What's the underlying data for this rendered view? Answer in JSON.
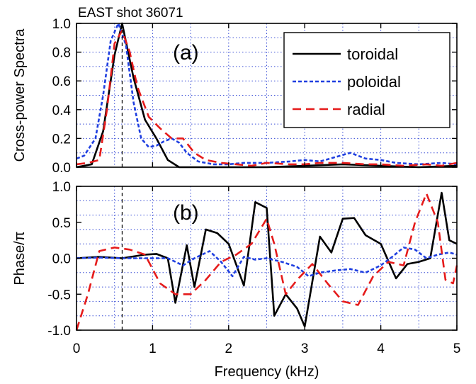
{
  "chart_data": [
    {
      "type": "line",
      "title": "EAST shot 36071",
      "panel_label": "(a)",
      "ylabel": "Cross-power Spectra",
      "xlim": [
        0,
        5
      ],
      "ylim": [
        0,
        1.0
      ],
      "x_ticks": [
        0,
        1,
        2,
        3,
        4,
        5
      ],
      "y_ticks": [
        "0.0",
        "0.2",
        "0.4",
        "0.6",
        "0.8",
        "1.0"
      ],
      "grid": true,
      "legend_position": "top-right",
      "series": [
        {
          "name": "toroidal",
          "color": "#000000",
          "style": "solid",
          "x": [
            0,
            0.2,
            0.35,
            0.5,
            0.6,
            0.75,
            0.9,
            1.05,
            1.2,
            1.35,
            1.5,
            2.0,
            2.5,
            3.0,
            3.5,
            4.0,
            4.5,
            5.0
          ],
          "y": [
            0.0,
            0.02,
            0.25,
            0.78,
            1.0,
            0.62,
            0.33,
            0.2,
            0.05,
            0.0,
            0.0,
            0.0,
            0.0,
            0.01,
            0.02,
            0.01,
            0.0,
            0.01
          ]
        },
        {
          "name": "poloidal",
          "color": "#1f3fe0",
          "style": "dotted",
          "x": [
            0,
            0.1,
            0.25,
            0.35,
            0.45,
            0.55,
            0.65,
            0.75,
            0.85,
            0.95,
            1.05,
            1.15,
            1.25,
            1.35,
            1.45,
            1.6,
            1.8,
            2.0,
            2.2,
            2.5,
            2.8,
            3.0,
            3.2,
            3.4,
            3.6,
            3.8,
            4.0,
            4.2,
            4.5,
            4.8,
            5.0
          ],
          "y": [
            0.06,
            0.08,
            0.2,
            0.5,
            0.88,
            1.0,
            0.85,
            0.45,
            0.2,
            0.14,
            0.15,
            0.18,
            0.2,
            0.17,
            0.1,
            0.04,
            0.02,
            0.02,
            0.03,
            0.03,
            0.04,
            0.05,
            0.04,
            0.07,
            0.1,
            0.06,
            0.05,
            0.03,
            0.02,
            0.03,
            0.02
          ]
        },
        {
          "name": "radial",
          "color": "#e51b1b",
          "style": "dashed",
          "x": [
            0,
            0.15,
            0.3,
            0.4,
            0.5,
            0.6,
            0.7,
            0.8,
            0.95,
            1.1,
            1.25,
            1.4,
            1.55,
            1.7,
            1.9,
            2.1,
            2.3,
            2.5,
            2.8,
            3.0,
            3.2,
            3.5,
            3.8,
            4.0,
            4.3,
            4.6,
            4.8,
            5.0
          ],
          "y": [
            0.02,
            0.03,
            0.05,
            0.4,
            0.86,
            0.95,
            0.8,
            0.56,
            0.35,
            0.27,
            0.2,
            0.2,
            0.1,
            0.05,
            0.03,
            0.02,
            0.01,
            0.03,
            0.02,
            0.02,
            0.03,
            0.03,
            0.02,
            0.02,
            0.01,
            0.02,
            0.01,
            0.03
          ]
        }
      ],
      "legend": [
        "toroidal",
        "poloidal",
        "radial"
      ],
      "vline_x": 0.6
    },
    {
      "type": "line",
      "panel_label": "(b)",
      "ylabel": "Phase/π",
      "xlabel": "Frequency (kHz)",
      "xlim": [
        0,
        5
      ],
      "ylim": [
        -1.0,
        1.0
      ],
      "x_ticks": [
        "0",
        "1",
        "2",
        "3",
        "4",
        "5"
      ],
      "y_ticks": [
        "-1.0",
        "-0.5",
        "0.0",
        "0.5",
        "1.0"
      ],
      "grid": true,
      "series": [
        {
          "name": "toroidal",
          "color": "#000000",
          "style": "solid",
          "x": [
            0,
            0.3,
            0.6,
            0.9,
            1.05,
            1.2,
            1.3,
            1.45,
            1.55,
            1.7,
            1.85,
            2.0,
            2.2,
            2.35,
            2.5,
            2.6,
            2.75,
            2.9,
            3.0,
            3.2,
            3.35,
            3.5,
            3.65,
            3.8,
            4.0,
            4.2,
            4.35,
            4.5,
            4.65,
            4.8,
            4.9,
            5.0
          ],
          "y": [
            0.0,
            0.02,
            0.0,
            0.05,
            0.06,
            0.0,
            -0.62,
            0.18,
            -0.4,
            0.4,
            0.35,
            0.2,
            -0.38,
            0.78,
            0.7,
            -0.8,
            -0.5,
            -0.7,
            -0.95,
            0.3,
            0.08,
            0.55,
            0.56,
            0.32,
            0.2,
            -0.28,
            -0.08,
            -0.05,
            0.0,
            0.91,
            0.25,
            0.2
          ]
        },
        {
          "name": "poloidal",
          "color": "#1f3fe0",
          "style": "dotted",
          "x": [
            0,
            0.3,
            0.6,
            0.8,
            1.0,
            1.2,
            1.4,
            1.55,
            1.75,
            1.9,
            2.05,
            2.2,
            2.35,
            2.5,
            2.7,
            2.9,
            3.05,
            3.2,
            3.4,
            3.6,
            3.8,
            4.0,
            4.15,
            4.3,
            4.45,
            4.6,
            4.75,
            4.9,
            5.0
          ],
          "y": [
            0.0,
            0.01,
            0.0,
            0.0,
            0.0,
            0.0,
            -0.1,
            0.0,
            0.1,
            -0.05,
            -0.25,
            0.02,
            -0.02,
            0.0,
            -0.05,
            -0.12,
            -0.25,
            -0.2,
            -0.17,
            -0.15,
            -0.2,
            -0.1,
            0.02,
            0.15,
            0.12,
            0.0,
            0.05,
            0.08,
            0.05
          ]
        },
        {
          "name": "radial",
          "color": "#e51b1b",
          "style": "dashed",
          "x": [
            0,
            0.15,
            0.3,
            0.5,
            0.7,
            0.9,
            1.1,
            1.3,
            1.5,
            1.7,
            1.9,
            2.1,
            2.3,
            2.5,
            2.6,
            2.75,
            2.9,
            3.1,
            3.3,
            3.5,
            3.7,
            3.9,
            4.1,
            4.3,
            4.45,
            4.6,
            4.75,
            4.85,
            4.95,
            5.0
          ],
          "y": [
            -1.0,
            -0.5,
            0.1,
            0.15,
            0.12,
            0.05,
            -0.35,
            -0.5,
            -0.5,
            -0.3,
            -0.05,
            0.05,
            0.2,
            0.55,
            0.2,
            -0.5,
            -0.3,
            -0.08,
            -0.35,
            -0.6,
            -0.65,
            -0.25,
            -0.05,
            -0.1,
            0.5,
            0.9,
            0.5,
            -0.3,
            -0.35,
            -0.1
          ]
        }
      ],
      "vline_x": 0.6
    }
  ]
}
